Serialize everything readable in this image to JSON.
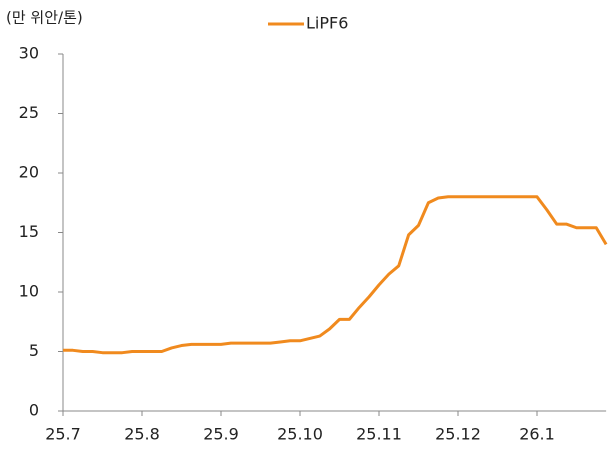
{
  "chart_data": {
    "type": "line",
    "unit_label": "(만 위안/톤)",
    "categories": [
      "25.7",
      null,
      null,
      null,
      null,
      null,
      null,
      null,
      "25.8",
      null,
      null,
      null,
      null,
      null,
      null,
      null,
      "25.9",
      null,
      null,
      null,
      null,
      null,
      null,
      null,
      "25.10",
      null,
      null,
      null,
      null,
      null,
      null,
      null,
      "25.11",
      null,
      null,
      null,
      null,
      null,
      null,
      null,
      "25.12",
      null,
      null,
      null,
      null,
      null,
      null,
      null,
      "26.1",
      null,
      null,
      null,
      null,
      null,
      null,
      null
    ],
    "series": [
      {
        "name": "LiPF6",
        "color": "#f08a1e",
        "values": [
          5.1,
          5.1,
          5.0,
          5.0,
          4.9,
          4.9,
          4.9,
          5.0,
          5.0,
          5.0,
          5.0,
          5.3,
          5.5,
          5.6,
          5.6,
          5.6,
          5.6,
          5.7,
          5.7,
          5.7,
          5.7,
          5.7,
          5.8,
          5.9,
          5.9,
          6.1,
          6.3,
          6.9,
          7.7,
          7.7,
          8.7,
          9.6,
          10.6,
          11.5,
          12.2,
          14.8,
          15.6,
          17.5,
          17.9,
          18.0,
          18.0,
          18.0,
          18.0,
          18.0,
          18.0,
          18.0,
          18.0,
          18.0,
          18.0,
          16.9,
          15.7,
          15.7,
          15.4,
          15.4,
          15.4,
          14.0
        ]
      }
    ],
    "ylim": [
      0,
      30
    ],
    "yticks": [
      0,
      5,
      10,
      15,
      20,
      25,
      30
    ],
    "grid": false,
    "legend": "top"
  }
}
